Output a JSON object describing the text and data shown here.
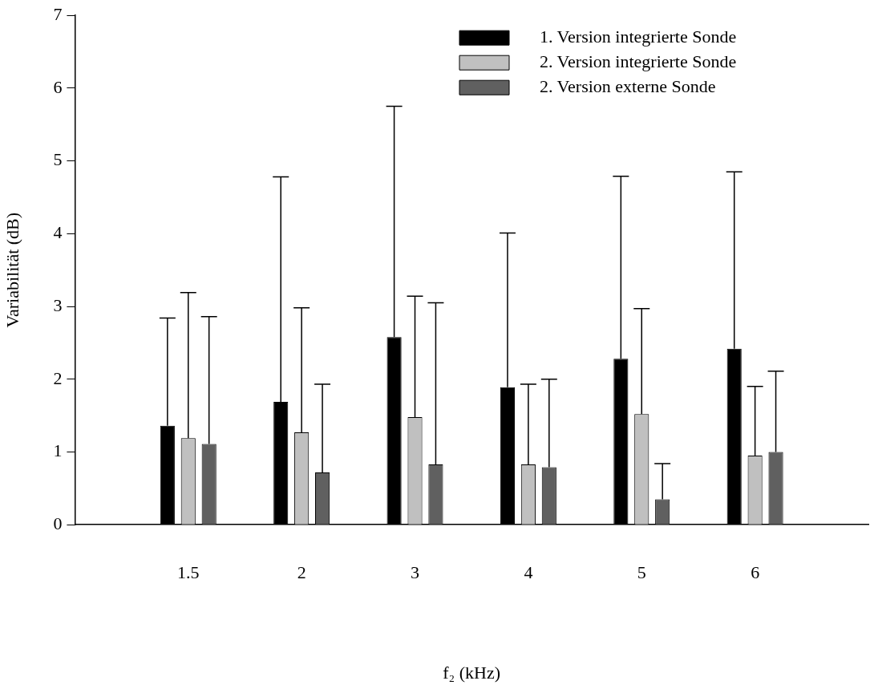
{
  "chart_data": {
    "type": "bar",
    "xlabel": "f₂ (kHz)",
    "ylabel": "Variabilität (dB)",
    "categories": [
      "1.5",
      "2",
      "3",
      "4",
      "5",
      "6"
    ],
    "series": [
      {
        "name": "1. Version integrierte Sonde",
        "color": "#000000",
        "values": [
          1.36,
          1.69,
          2.58,
          1.89,
          2.28,
          2.42
        ],
        "errors": [
          [
            1.36,
            2.84
          ],
          [
            1.69,
            4.78
          ],
          [
            2.58,
            5.75
          ],
          [
            1.89,
            4.01
          ],
          [
            2.28,
            4.79
          ],
          [
            2.42,
            4.85
          ]
        ]
      },
      {
        "name": "2. Version integrierte Sonde",
        "color": "#c0c0c0",
        "values": [
          1.19,
          1.27,
          1.48,
          0.83,
          1.52,
          0.95
        ],
        "errors": [
          [
            1.19,
            3.19
          ],
          [
            1.27,
            2.98
          ],
          [
            1.48,
            3.14
          ],
          [
            0.83,
            1.93
          ],
          [
            1.52,
            2.97
          ],
          [
            0.95,
            1.9
          ]
        ]
      },
      {
        "name": "2. Version externe Sonde",
        "color": "#606060",
        "values": [
          1.11,
          0.72,
          0.83,
          0.79,
          0.35,
          1.0
        ],
        "errors": [
          [
            1.11,
            2.86
          ],
          [
            0.72,
            1.93
          ],
          [
            0.83,
            3.05
          ],
          [
            0.79,
            2.0
          ],
          [
            0.35,
            0.84
          ],
          [
            1.0,
            2.11
          ]
        ]
      }
    ],
    "ylim": [
      0,
      7
    ],
    "yticks": [
      0,
      1,
      2,
      3,
      4,
      5,
      6,
      7
    ],
    "grid": false,
    "legend": "top right"
  }
}
